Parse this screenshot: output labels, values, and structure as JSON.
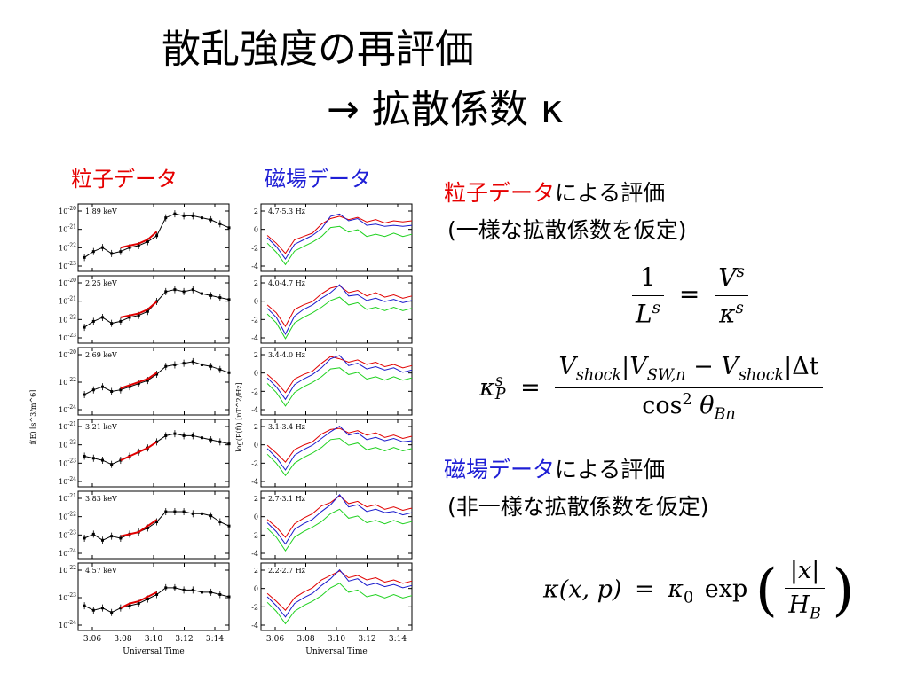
{
  "title": {
    "line1": "散乱強度の再評価",
    "line2": "→ 拡散係数 κ"
  },
  "panels": {
    "particle_heading": "粒子データ",
    "field_heading": "磁場データ"
  },
  "right": {
    "eval1_colored": "粒子データ",
    "eval1_rest": "による評価",
    "eval1_note": "(一様な拡散係数を仮定)",
    "eval2_colored": "磁場データ",
    "eval2_rest": "による評価",
    "eval2_note": "(非一様な拡散係数を仮定)"
  },
  "equations": {
    "eq1": {
      "lhs_num": "1",
      "lhs_den_base": "L",
      "lhs_den_sup": "s",
      "equals": "=",
      "rhs_num_base": "V",
      "rhs_num_sup": "s",
      "rhs_den_base": "κ",
      "rhs_den_sup": "s"
    },
    "eq2": {
      "lhs_base": "κ",
      "lhs_sup": "s",
      "lhs_sub": "P",
      "equals": "=",
      "num": "V_shock|V_SW,n − V_shock|Δt",
      "num_v1": "V",
      "num_s1": "shock",
      "num_bar1": "|",
      "num_v2": "V",
      "num_s2": "SW,n",
      "num_minus": " − ",
      "num_v3": "V",
      "num_s3": "shock",
      "num_bar2": "|",
      "num_dt": "Δt",
      "den_cos": "cos",
      "den_sup": "2",
      "den_theta": " θ",
      "den_sub": "Bn"
    },
    "eq3": {
      "lhs": "κ(x, p)",
      "equals": "=",
      "kappa": "κ",
      "kappa_sub": "0",
      "exp": "exp",
      "num": "|x|",
      "den_base": "H",
      "den_sub": "B"
    }
  },
  "chart_data": [
    {
      "type": "line",
      "name": "particle-data-stack",
      "xlabel": "Universal Time",
      "ylabel": "f(E) [s^3/m^6]",
      "x_ticks": [
        "3:06",
        "3:08",
        "3:10",
        "3:12",
        "3:14"
      ],
      "xlim": [
        3.083,
        3.25
      ],
      "panels": [
        {
          "label": "1.89 keV",
          "y_ticks": [
            "10^-20",
            "10^-21",
            "10^-22",
            "10^-23"
          ],
          "ylim": [
            -23.3,
            -19.9
          ],
          "x": [
            3.09,
            3.1,
            3.11,
            3.12,
            3.13,
            3.14,
            3.15,
            3.16,
            3.17,
            3.18,
            3.19,
            3.2,
            3.21,
            3.22,
            3.23,
            3.24,
            3.25
          ],
          "values": [
            -22.6,
            -22.3,
            -22.1,
            -22.4,
            -22.3,
            -22.1,
            -22.0,
            -21.8,
            -21.5,
            -20.6,
            -20.4,
            -20.5,
            -20.5,
            -20.6,
            -20.7,
            -20.9,
            -21.1
          ],
          "fit_x": [
            3.13,
            3.14,
            3.15,
            3.16,
            3.17
          ],
          "fit": [
            -22.1,
            -22.0,
            -21.9,
            -21.7,
            -21.3
          ]
        },
        {
          "label": "2.25 keV",
          "y_ticks": [
            "10^-20",
            "10^-21",
            "10^-22",
            "10^-23"
          ],
          "ylim": [
            -23.3,
            -19.9
          ],
          "x": [
            3.09,
            3.1,
            3.11,
            3.12,
            3.13,
            3.14,
            3.15,
            3.16,
            3.17,
            3.18,
            3.19,
            3.2,
            3.21,
            3.22,
            3.23,
            3.24,
            3.25
          ],
          "values": [
            -22.5,
            -22.2,
            -22.0,
            -22.3,
            -22.2,
            -22.0,
            -21.9,
            -21.7,
            -21.2,
            -20.7,
            -20.6,
            -20.7,
            -20.6,
            -20.8,
            -20.9,
            -21.0,
            -21.1
          ],
          "fit_x": [
            3.13,
            3.14,
            3.15,
            3.16,
            3.17
          ],
          "fit": [
            -22.0,
            -21.9,
            -21.8,
            -21.6,
            -21.2
          ]
        },
        {
          "label": "2.69 keV",
          "y_ticks": [
            "10^-20",
            "10^-22",
            "10^-24"
          ],
          "ylim": [
            -24.2,
            -19.9
          ],
          "x": [
            3.09,
            3.1,
            3.11,
            3.12,
            3.13,
            3.14,
            3.15,
            3.16,
            3.17,
            3.18,
            3.19,
            3.2,
            3.21,
            3.22,
            3.23,
            3.24,
            3.25
          ],
          "values": [
            -22.9,
            -22.6,
            -22.4,
            -22.7,
            -22.6,
            -22.4,
            -22.2,
            -22.0,
            -21.6,
            -21.1,
            -21.0,
            -20.9,
            -20.8,
            -21.0,
            -21.1,
            -21.3,
            -21.5
          ],
          "fit_x": [
            3.13,
            3.14,
            3.15,
            3.16,
            3.17
          ],
          "fit": [
            -22.5,
            -22.3,
            -22.1,
            -21.9,
            -21.5
          ]
        },
        {
          "label": "3.21 keV",
          "y_ticks": [
            "10^-21",
            "10^-22",
            "10^-23",
            "10^-24"
          ],
          "ylim": [
            -24.2,
            -20.9
          ],
          "x": [
            3.09,
            3.1,
            3.11,
            3.12,
            3.13,
            3.14,
            3.15,
            3.16,
            3.17,
            3.18,
            3.19,
            3.2,
            3.21,
            3.22,
            3.23,
            3.24,
            3.25
          ],
          "values": [
            -22.7,
            -22.8,
            -22.9,
            -23.1,
            -22.9,
            -22.7,
            -22.5,
            -22.3,
            -22.0,
            -21.7,
            -21.6,
            -21.7,
            -21.7,
            -21.8,
            -21.9,
            -22.0,
            -22.1
          ],
          "fit_x": [
            3.13,
            3.14,
            3.15,
            3.16,
            3.17
          ],
          "fit": [
            -22.9,
            -22.7,
            -22.5,
            -22.3,
            -22.0
          ]
        },
        {
          "label": "3.83 keV",
          "y_ticks": [
            "10^-21",
            "10^-22",
            "10^-23",
            "10^-24"
          ],
          "ylim": [
            -24.2,
            -20.9
          ],
          "x": [
            3.09,
            3.1,
            3.11,
            3.12,
            3.13,
            3.14,
            3.15,
            3.16,
            3.17,
            3.18,
            3.19,
            3.2,
            3.21,
            3.22,
            3.23,
            3.24,
            3.25
          ],
          "values": [
            -23.2,
            -23.0,
            -23.3,
            -23.1,
            -23.2,
            -23.0,
            -22.9,
            -22.7,
            -22.4,
            -21.9,
            -21.9,
            -21.9,
            -22.0,
            -22.0,
            -22.1,
            -22.4,
            -22.6
          ],
          "fit_x": [
            3.13,
            3.14,
            3.15,
            3.16,
            3.17
          ],
          "fit": [
            -23.1,
            -23.0,
            -22.9,
            -22.6,
            -22.3
          ]
        },
        {
          "label": "4.57 keV",
          "y_ticks": [
            "10^-22",
            "10^-23",
            "10^-24"
          ],
          "ylim": [
            -24.5,
            -21.5
          ],
          "x": [
            3.09,
            3.1,
            3.11,
            3.12,
            3.13,
            3.14,
            3.15,
            3.16,
            3.17,
            3.18,
            3.19,
            3.2,
            3.21,
            3.22,
            3.23,
            3.24,
            3.25
          ],
          "values": [
            -23.4,
            -23.6,
            -23.5,
            -23.7,
            -23.5,
            -23.4,
            -23.3,
            -23.1,
            -22.9,
            -22.6,
            -22.6,
            -22.7,
            -22.7,
            -22.8,
            -22.8,
            -22.9,
            -23.0
          ],
          "fit_x": [
            3.13,
            3.14,
            3.15,
            3.16,
            3.17
          ],
          "fit": [
            -23.5,
            -23.3,
            -23.2,
            -23.0,
            -22.8
          ]
        }
      ]
    },
    {
      "type": "line",
      "name": "field-data-stack",
      "xlabel": "Universal Time",
      "ylabel": "log(P(f)) [nT^2/Hz]",
      "x_ticks": [
        "3:06",
        "3:08",
        "3:10",
        "3:12",
        "3:14"
      ],
      "xlim": [
        3.083,
        3.25
      ],
      "y_ticks": [
        "2",
        "0",
        "-2",
        "-4"
      ],
      "ylim": [
        -4,
        2
      ],
      "series_colors": [
        "#e00000",
        "#1a1acc",
        "#1fd11f"
      ],
      "panels": [
        {
          "label": "4.7-5.3 Hz",
          "x": [
            3.09,
            3.1,
            3.11,
            3.12,
            3.13,
            3.14,
            3.15,
            3.16,
            3.17,
            3.18,
            3.19,
            3.2,
            3.21,
            3.22,
            3.23,
            3.24,
            3.25
          ],
          "series": [
            {
              "values": [
                -0.8,
                -1.5,
                -2.4,
                -1.2,
                -0.9,
                -0.6,
                0.2,
                0.7,
                0.9,
                0.6,
                0.8,
                0.4,
                0.6,
                0.3,
                0.5,
                0.4,
                0.5
              ]
            },
            {
              "values": [
                -1.0,
                -1.8,
                -2.9,
                -1.6,
                -1.2,
                -0.8,
                -0.2,
                0.9,
                1.1,
                0.5,
                0.7,
                0.1,
                0.2,
                0.0,
                0.1,
                0.0,
                0.1
              ]
            },
            {
              "values": [
                -1.5,
                -2.3,
                -3.4,
                -2.2,
                -1.8,
                -1.4,
                -0.9,
                -0.1,
                0.0,
                -0.5,
                -0.3,
                -0.9,
                -0.7,
                -0.9,
                -0.6,
                -0.9,
                -0.7
              ]
            }
          ]
        },
        {
          "label": "4.0-4.7 Hz",
          "x": [
            3.09,
            3.1,
            3.11,
            3.12,
            3.13,
            3.14,
            3.15,
            3.16,
            3.17,
            3.18,
            3.19,
            3.2,
            3.21,
            3.22,
            3.23,
            3.24,
            3.25
          ],
          "series": [
            {
              "values": [
                -0.6,
                -1.3,
                -2.5,
                -1.0,
                -0.6,
                -0.3,
                0.4,
                0.9,
                1.1,
                0.5,
                0.7,
                0.2,
                0.5,
                0.1,
                0.3,
                0.0,
                0.2
              ]
            },
            {
              "values": [
                -0.9,
                -1.7,
                -3.2,
                -1.6,
                -1.0,
                -0.6,
                0.0,
                0.5,
                1.2,
                0.2,
                0.3,
                -0.2,
                0.0,
                -0.3,
                -0.1,
                -0.4,
                -0.2
              ]
            },
            {
              "values": [
                -1.4,
                -2.2,
                -3.6,
                -2.2,
                -1.7,
                -1.3,
                -0.8,
                -0.2,
                0.1,
                -0.6,
                -0.4,
                -1.0,
                -0.8,
                -1.1,
                -0.8,
                -1.1,
                -0.9
              ]
            }
          ]
        },
        {
          "label": "3.4-4.0 Hz",
          "x": [
            3.09,
            3.1,
            3.11,
            3.12,
            3.13,
            3.14,
            3.15,
            3.16,
            3.17,
            3.18,
            3.19,
            3.2,
            3.21,
            3.22,
            3.23,
            3.24,
            3.25
          ],
          "series": [
            {
              "values": [
                -0.4,
                -1.1,
                -2.0,
                -0.8,
                -0.4,
                -0.1,
                0.6,
                1.2,
                1.0,
                0.7,
                0.9,
                0.5,
                0.7,
                0.3,
                0.5,
                0.2,
                0.4
              ]
            },
            {
              "values": [
                -0.7,
                -1.5,
                -2.6,
                -1.3,
                -0.8,
                -0.4,
                0.2,
                1.0,
                1.3,
                0.4,
                0.6,
                0.1,
                0.3,
                0.0,
                0.2,
                -0.2,
                0.0
              ]
            },
            {
              "values": [
                -1.2,
                -2.0,
                -3.2,
                -2.0,
                -1.5,
                -1.1,
                -0.6,
                0.1,
                0.2,
                -0.4,
                -0.2,
                -0.8,
                -0.6,
                -0.9,
                -0.6,
                -0.9,
                -0.7
              ]
            }
          ]
        },
        {
          "label": "3.1-3.4 Hz",
          "x": [
            3.09,
            3.1,
            3.11,
            3.12,
            3.13,
            3.14,
            3.15,
            3.16,
            3.17,
            3.18,
            3.19,
            3.2,
            3.21,
            3.22,
            3.23,
            3.24,
            3.25
          ],
          "series": [
            {
              "values": [
                -0.3,
                -1.0,
                -1.8,
                -0.7,
                -0.3,
                0.0,
                0.7,
                1.1,
                1.2,
                0.8,
                1.0,
                0.6,
                0.8,
                0.4,
                0.6,
                0.3,
                0.5
              ]
            },
            {
              "values": [
                -0.6,
                -1.4,
                -2.5,
                -1.2,
                -0.7,
                -0.3,
                0.3,
                0.9,
                1.4,
                0.6,
                0.8,
                0.2,
                0.4,
                0.1,
                0.3,
                0.0,
                0.1
              ]
            },
            {
              "values": [
                -1.1,
                -1.9,
                -3.0,
                -1.9,
                -1.4,
                -1.0,
                -0.5,
                0.2,
                0.3,
                -0.3,
                -0.1,
                -0.7,
                -0.5,
                -0.8,
                -0.5,
                -0.8,
                -0.6
              ]
            }
          ]
        },
        {
          "label": "2.7-3.1 Hz",
          "x": [
            3.09,
            3.1,
            3.11,
            3.12,
            3.13,
            3.14,
            3.15,
            3.16,
            3.17,
            3.18,
            3.19,
            3.2,
            3.21,
            3.22,
            3.23,
            3.24,
            3.25
          ],
          "series": [
            {
              "values": [
                -0.5,
                -1.2,
                -2.1,
                -0.9,
                -0.4,
                0.0,
                0.7,
                1.0,
                1.6,
                0.9,
                1.1,
                0.6,
                0.8,
                0.4,
                0.6,
                0.3,
                0.5
              ]
            },
            {
              "values": [
                -0.8,
                -1.6,
                -2.7,
                -1.4,
                -0.9,
                -0.5,
                0.2,
                0.8,
                1.7,
                0.6,
                0.8,
                0.2,
                0.4,
                0.1,
                0.2,
                -0.1,
                0.1
              ]
            },
            {
              "values": [
                -1.3,
                -2.1,
                -3.3,
                -2.1,
                -1.6,
                -1.2,
                -0.7,
                0.0,
                0.4,
                -0.4,
                -0.2,
                -0.8,
                -0.6,
                -0.9,
                -0.6,
                -0.9,
                -0.7
              ]
            }
          ]
        },
        {
          "label": "2.2-2.7 Hz",
          "x": [
            3.09,
            3.1,
            3.11,
            3.12,
            3.13,
            3.14,
            3.15,
            3.16,
            3.17,
            3.18,
            3.19,
            3.2,
            3.21,
            3.22,
            3.23,
            3.24,
            3.25
          ],
          "series": [
            {
              "values": [
                -0.7,
                -1.4,
                -2.2,
                -1.1,
                -0.6,
                -0.2,
                0.5,
                0.9,
                1.3,
                0.7,
                0.9,
                0.5,
                0.7,
                0.3,
                0.5,
                0.2,
                0.4
              ]
            },
            {
              "values": [
                -1.0,
                -1.8,
                -2.8,
                -1.6,
                -1.1,
                -0.7,
                0.0,
                0.6,
                1.4,
                0.4,
                0.6,
                0.0,
                0.2,
                -0.1,
                0.1,
                -0.2,
                0.0
              ]
            },
            {
              "values": [
                -1.5,
                -2.3,
                -3.4,
                -2.3,
                -1.8,
                -1.4,
                -0.9,
                -0.2,
                0.2,
                -0.6,
                -0.4,
                -1.0,
                -0.8,
                -1.1,
                -0.8,
                -1.1,
                -0.9
              ]
            }
          ]
        }
      ]
    }
  ]
}
